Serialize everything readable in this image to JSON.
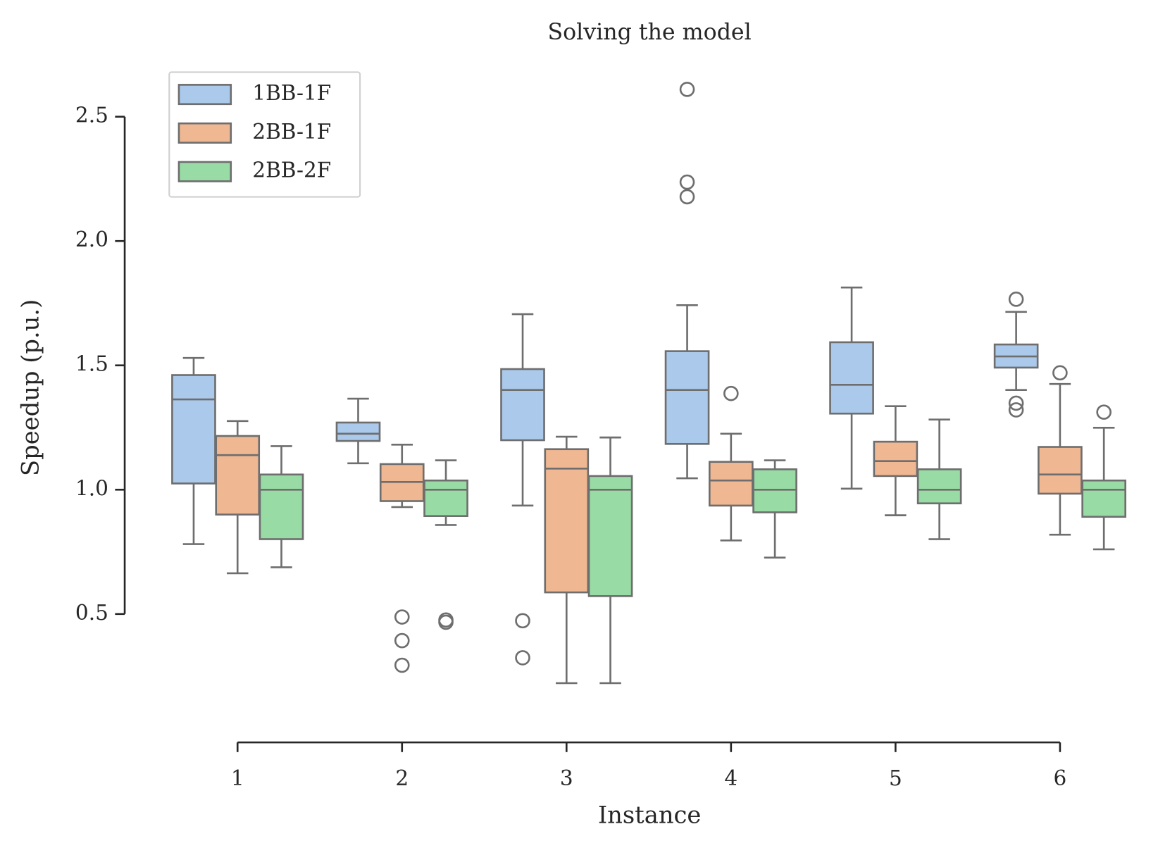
{
  "chart_data": {
    "type": "box",
    "title": "Solving the model",
    "x_label": "Instance",
    "y_label": "Speedup (p.u.)",
    "categories": [
      "1",
      "2",
      "3",
      "4",
      "5",
      "6"
    ],
    "ylim": [
      0,
      2.7
    ],
    "yticks": [
      0.5,
      {
        "value": 1,
        "label": "1.0"
      },
      1.5,
      {
        "value": 2,
        "label": "2.0"
      },
      2.5
    ],
    "edge_color": "#6e6e6e",
    "legend": "upper left",
    "series": [
      {
        "name": "1BB-1F",
        "color": "#abc9ea",
        "boxes": [
          {
            "whislo": 0.781,
            "q1": 1.025,
            "median": 1.363,
            "q3": 1.461,
            "whishi": 1.53,
            "fliers": []
          },
          {
            "whislo": 1.106,
            "q1": 1.196,
            "median": 1.225,
            "q3": 1.27,
            "whishi": 1.366,
            "fliers": []
          },
          {
            "whislo": 0.936,
            "q1": 1.199,
            "median": 1.401,
            "q3": 1.485,
            "whishi": 1.706,
            "fliers": [
              0.473,
              0.324
            ]
          },
          {
            "whislo": 1.046,
            "q1": 1.184,
            "median": 1.401,
            "q3": 1.557,
            "whishi": 1.742,
            "fliers": [
              2.61,
              2.237,
              2.178
            ]
          },
          {
            "whislo": 1.004,
            "q1": 1.306,
            "median": 1.422,
            "q3": 1.593,
            "whishi": 1.813,
            "fliers": []
          },
          {
            "whislo": 1.401,
            "q1": 1.491,
            "median": 1.536,
            "q3": 1.584,
            "whishi": 1.715,
            "fliers": [
              1.766,
              1.348,
              1.321
            ]
          }
        ]
      },
      {
        "name": "2BB-1F",
        "color": "#efb792",
        "boxes": [
          {
            "whislo": 0.664,
            "q1": 0.9,
            "median": 1.139,
            "q3": 1.216,
            "whishi": 1.276,
            "fliers": []
          },
          {
            "whislo": 0.93,
            "q1": 0.954,
            "median": 1.031,
            "q3": 1.103,
            "whishi": 1.181,
            "fliers": [
              0.488,
              0.393,
              0.294
            ]
          },
          {
            "whislo": 0.222,
            "q1": 0.587,
            "median": 1.085,
            "q3": 1.163,
            "whishi": 1.213,
            "fliers": []
          },
          {
            "whislo": 0.796,
            "q1": 0.936,
            "median": 1.037,
            "q3": 1.112,
            "whishi": 1.225,
            "fliers": [
              1.387
            ]
          },
          {
            "whislo": 0.897,
            "q1": 1.055,
            "median": 1.115,
            "q3": 1.193,
            "whishi": 1.336,
            "fliers": []
          },
          {
            "whislo": 0.819,
            "q1": 0.984,
            "median": 1.061,
            "q3": 1.172,
            "whishi": 1.425,
            "fliers": [
              1.47
            ]
          }
        ]
      },
      {
        "name": "2BB-2F",
        "color": "#98dba5",
        "boxes": [
          {
            "whislo": 0.688,
            "q1": 0.801,
            "median": 1.0,
            "q3": 1.061,
            "whishi": 1.175,
            "fliers": []
          },
          {
            "whislo": 0.858,
            "q1": 0.894,
            "median": 1.0,
            "q3": 1.037,
            "whishi": 1.118,
            "fliers": [
              0.476,
              0.467
            ]
          },
          {
            "whislo": 0.222,
            "q1": 0.572,
            "median": 1.0,
            "q3": 1.055,
            "whishi": 1.21,
            "fliers": []
          },
          {
            "whislo": 0.727,
            "q1": 0.909,
            "median": 1.0,
            "q3": 1.082,
            "whishi": 1.118,
            "fliers": []
          },
          {
            "whislo": 0.801,
            "q1": 0.945,
            "median": 1.0,
            "q3": 1.082,
            "whishi": 1.282,
            "fliers": []
          },
          {
            "whislo": 0.76,
            "q1": 0.891,
            "median": 1.0,
            "q3": 1.037,
            "whishi": 1.249,
            "fliers": [
              1.312
            ]
          }
        ]
      }
    ]
  }
}
